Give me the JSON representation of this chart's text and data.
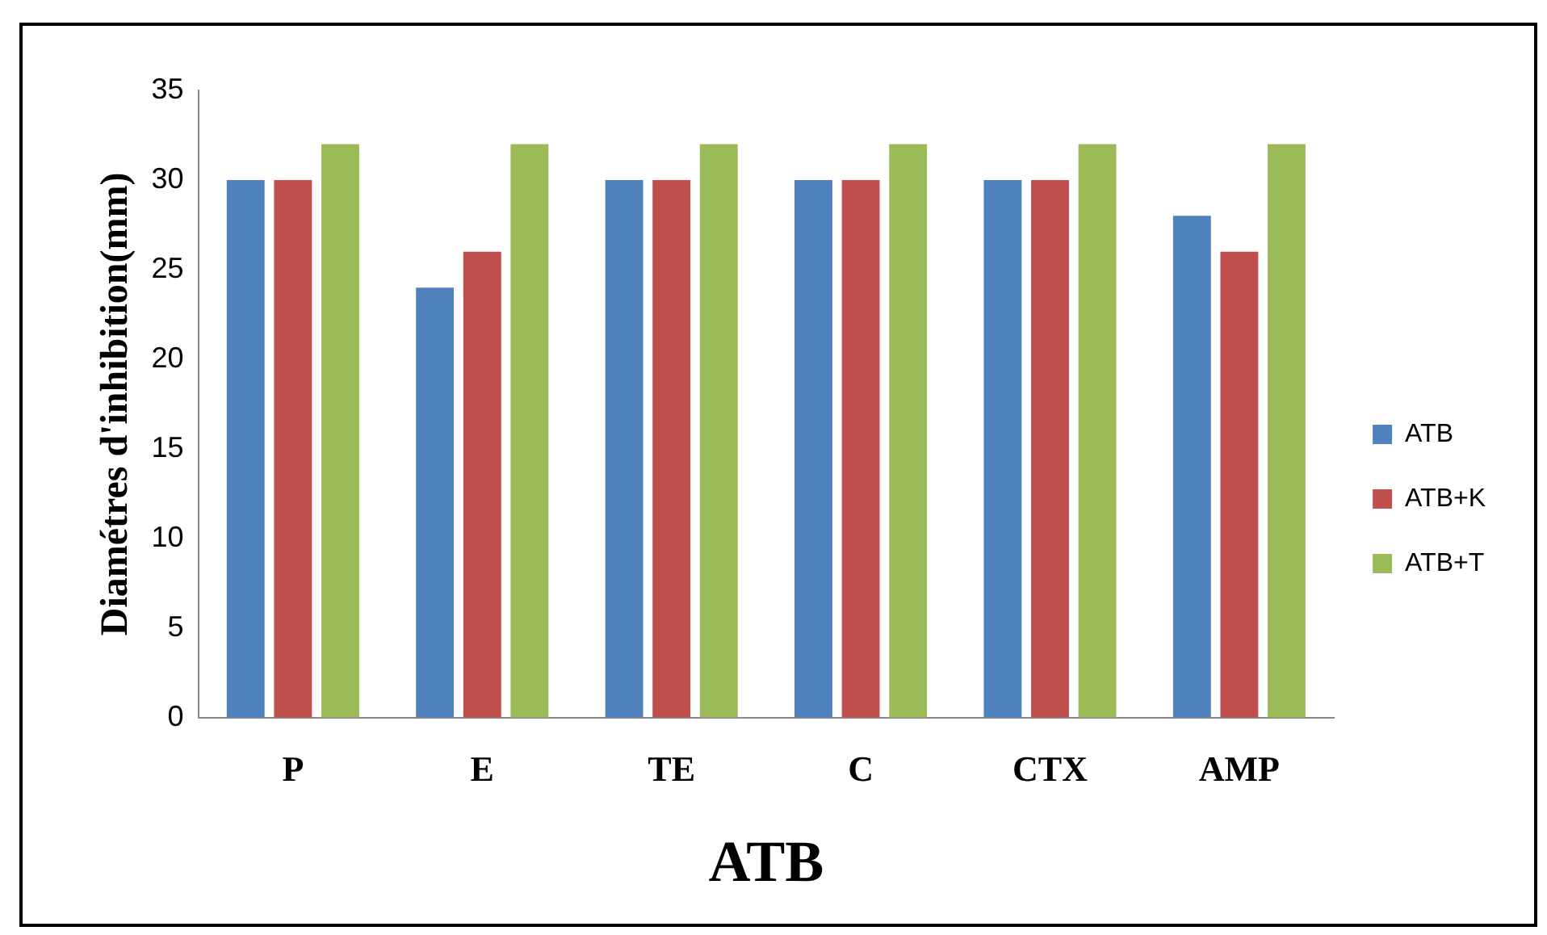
{
  "chart_data": {
    "type": "bar",
    "xlabel": "ATB",
    "ylabel": "Diamétres d'inhibition(mm)",
    "categories": [
      "P",
      "E",
      "TE",
      "C",
      "CTX",
      "AMP"
    ],
    "series": [
      {
        "name": "ATB",
        "color": "#4f81bd",
        "values": [
          30,
          24,
          30,
          30,
          30,
          28
        ]
      },
      {
        "name": "ATB+K",
        "color": "#c0504d",
        "values": [
          30,
          26,
          30,
          30,
          30,
          26
        ]
      },
      {
        "name": "ATB+T",
        "color": "#9bbb59",
        "values": [
          32,
          32,
          32,
          32,
          32,
          32
        ]
      }
    ],
    "ylim": [
      0,
      35
    ],
    "yticks": [
      0,
      5,
      10,
      15,
      20,
      25,
      30,
      35
    ],
    "grid": false,
    "legend": "right"
  }
}
